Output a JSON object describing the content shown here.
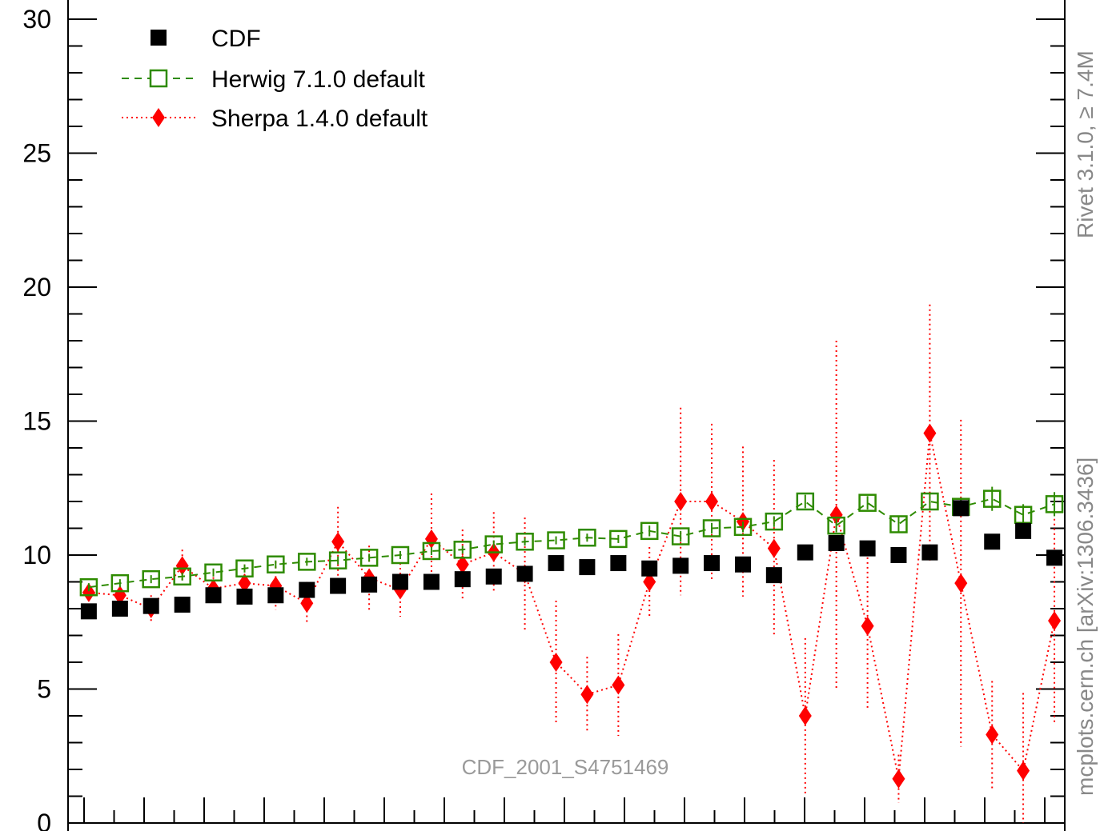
{
  "chart_data": {
    "type": "scatter",
    "title": "",
    "xlabel": "",
    "ylabel": "",
    "xlim": [
      0,
      1
    ],
    "ylim": [
      0,
      30
    ],
    "grid": false,
    "legend_position": "top-left",
    "y_ticks": [
      "0",
      "5",
      "10",
      "15",
      "20",
      "25",
      "30"
    ],
    "y_tick_values": [
      0,
      5,
      10,
      15,
      20,
      25,
      30
    ],
    "analysis_label": "CDF_2001_S4751469",
    "side_labels": {
      "right_top": "Rivet 3.1.0, ≥ 7.4M",
      "right_bottom": "mcplots.cern.ch [arXiv:1306.3436]"
    },
    "x": [
      0.0208,
      0.0521,
      0.0833,
      0.1146,
      0.1458,
      0.1771,
      0.2083,
      0.2396,
      0.2708,
      0.3021,
      0.3333,
      0.3646,
      0.3958,
      0.4271,
      0.4583,
      0.4896,
      0.5208,
      0.5521,
      0.5833,
      0.6146,
      0.6458,
      0.6771,
      0.7083,
      0.7396,
      0.7708,
      0.8021,
      0.8333,
      0.8646,
      0.8958,
      0.9271,
      0.9583,
      0.9896
    ],
    "series": [
      {
        "name": "CDF",
        "color": "#000000",
        "marker": "filled-square",
        "y": [
          7.9,
          8.0,
          8.1,
          8.15,
          8.5,
          8.45,
          8.5,
          8.7,
          8.85,
          8.9,
          9.0,
          9.0,
          9.1,
          9.2,
          9.3,
          9.7,
          9.55,
          9.7,
          9.5,
          9.6,
          9.7,
          9.65,
          9.25,
          10.1,
          10.45,
          10.25,
          10.0,
          10.1,
          11.75,
          10.5,
          10.9,
          9.9
        ]
      },
      {
        "name": "Herwig 7.1.0 default",
        "color": "#2e8b00",
        "marker": "open-square",
        "line": "dashed",
        "y": [
          8.8,
          8.95,
          9.1,
          9.2,
          9.35,
          9.5,
          9.65,
          9.75,
          9.8,
          9.9,
          10.0,
          10.15,
          10.2,
          10.4,
          10.5,
          10.55,
          10.65,
          10.6,
          10.9,
          10.7,
          11.0,
          11.05,
          11.25,
          12.0,
          11.1,
          11.95,
          11.15,
          12.0,
          11.8,
          12.1,
          11.5,
          11.9
        ],
        "err": [
          0.15,
          0.15,
          0.15,
          0.15,
          0.15,
          0.15,
          0.15,
          0.15,
          0.15,
          0.15,
          0.15,
          0.15,
          0.15,
          0.15,
          0.15,
          0.15,
          0.15,
          0.15,
          0.2,
          0.2,
          0.2,
          0.2,
          0.2,
          0.25,
          0.25,
          0.25,
          0.3,
          0.3,
          0.35,
          0.45,
          0.4,
          0.45
        ]
      },
      {
        "name": "Sherpa 1.4.0 default",
        "color": "#ff0000",
        "marker": "filled-diamond",
        "line": "dotted",
        "y": [
          8.6,
          8.5,
          8.0,
          9.6,
          8.75,
          8.95,
          8.85,
          8.2,
          10.5,
          9.15,
          8.7,
          10.6,
          9.65,
          10.1,
          9.3,
          6.0,
          4.8,
          5.15,
          9.0,
          12.0,
          12.0,
          11.25,
          10.25,
          4.0,
          11.5,
          7.35,
          1.65,
          14.55,
          8.95,
          3.3,
          1.95,
          7.55
        ],
        "err": [
          0.3,
          0.35,
          0.5,
          0.6,
          0.6,
          0.7,
          0.9,
          0.8,
          1.3,
          1.2,
          1.0,
          1.7,
          1.3,
          1.5,
          2.1,
          2.3,
          1.4,
          1.9,
          1.3,
          3.5,
          2.9,
          2.8,
          3.3,
          2.9,
          6.5,
          3.1,
          0.9,
          4.8,
          6.1,
          2.0,
          2.9,
          3.8
        ]
      }
    ]
  }
}
